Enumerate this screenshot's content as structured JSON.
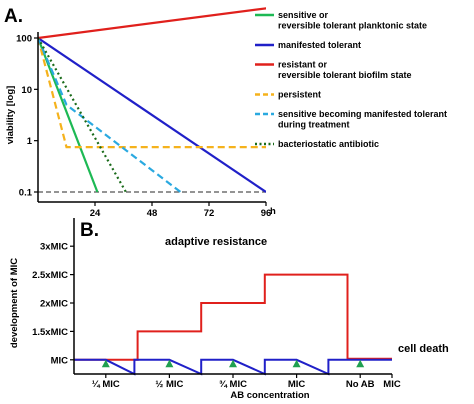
{
  "chart_data": [
    {
      "panel": "A.",
      "type": "line",
      "ylabel": "viability [log]",
      "xlabel": "h",
      "yscale": "log",
      "xlim": [
        0,
        96
      ],
      "ylim": [
        0.1,
        100
      ],
      "x_ticks": [
        24,
        48,
        72,
        96
      ],
      "x_tick_labels": [
        "24",
        "48",
        "72",
        "96"
      ],
      "y_ticks": [
        0.1,
        1,
        10,
        100
      ],
      "y_tick_labels": [
        "0.1",
        "1",
        "10",
        "100"
      ],
      "legend_position": "right",
      "series": [
        {
          "name": "sensitive or\nreversible tolerant planktonic state",
          "color": "#1db954",
          "dash": "solid",
          "points": [
            [
              0,
              100
            ],
            [
              25,
              0.1
            ]
          ]
        },
        {
          "name": "manifested tolerant",
          "color": "#2020c8",
          "dash": "solid",
          "points": [
            [
              0,
              100
            ],
            [
              96,
              0.1
            ]
          ]
        },
        {
          "name": "resistant or\nreversible tolerant biofilm state",
          "color": "#e0201c",
          "dash": "solid",
          "points": [
            [
              0,
              100
            ],
            [
              100,
              400
            ]
          ]
        },
        {
          "name": "persistent",
          "color": "#f5b21c",
          "dash": "dashed",
          "points": [
            [
              0,
              100
            ],
            [
              12,
              0.75
            ],
            [
              100,
              0.75
            ]
          ]
        },
        {
          "name": "sensitive becoming manifested tolerant\nduring treatment",
          "color": "#2aa9e0",
          "dash": "dashed",
          "points": [
            [
              0,
              100
            ],
            [
              12,
              5
            ],
            [
              60,
              0.1
            ]
          ]
        },
        {
          "name": "bacteriostatic antibiotic",
          "color": "#1a6b1a",
          "dash": "dotted",
          "points": [
            [
              0,
              100
            ],
            [
              37,
              0.1
            ]
          ]
        }
      ],
      "reference_line": {
        "y": 0.1,
        "color": "#555555",
        "dash": "dashed"
      }
    },
    {
      "panel": "B.",
      "type": "line",
      "ylabel": "development of MIC",
      "xlabel": "AB concentration",
      "x_tick_labels": [
        "¼ MIC",
        "½ MIC",
        "¾ MIC",
        "MIC",
        "No AB",
        "MIC"
      ],
      "y_ticks": [
        1,
        1.5,
        2,
        2.5,
        3
      ],
      "y_tick_labels": [
        "MIC",
        "1.5xMIC",
        "2xMIC",
        "2.5xMIC",
        "3xMIC"
      ],
      "ylim": [
        0.75,
        3.25
      ],
      "annotations": [
        "adaptive resistance",
        "cell death"
      ],
      "series": [
        {
          "color": "#e0201c",
          "points": [
            [
              0,
              1
            ],
            [
              2,
              1
            ],
            [
              2,
              1.5
            ],
            [
              4,
              1.5
            ],
            [
              4,
              2
            ],
            [
              6,
              2
            ],
            [
              6,
              2.5
            ],
            [
              8.6,
              2.5
            ],
            [
              8.6,
              1.02
            ],
            [
              10,
              1.02
            ]
          ]
        },
        {
          "color": "#2020c8",
          "points": [
            [
              0,
              1
            ],
            [
              1,
              1
            ],
            [
              1.9,
              0.75
            ],
            [
              1.9,
              1
            ],
            [
              3,
              1
            ],
            [
              4,
              0.75
            ],
            [
              4,
              1
            ],
            [
              5,
              1
            ],
            [
              6,
              0.75
            ],
            [
              6,
              1
            ],
            [
              7,
              1
            ],
            [
              8,
              0.75
            ],
            [
              8,
              1
            ],
            [
              10,
              1
            ]
          ]
        }
      ],
      "markers": {
        "shape": "triangle",
        "color": "#20a050",
        "x": [
          1,
          3,
          5,
          7,
          9
        ],
        "y": 0.93
      }
    }
  ]
}
